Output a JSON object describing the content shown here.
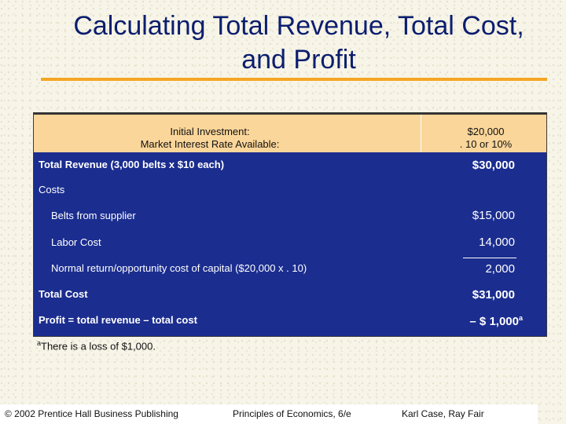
{
  "slide": {
    "title_line1": "Calculating Total Revenue, Total Cost,",
    "title_line2": "and Profit"
  },
  "table": {
    "header": {
      "label_line1": "Initial Investment:",
      "label_line2": "Market Interest Rate Available:",
      "value_line1": "$20,000",
      "value_line2": ". 10 or 10%"
    },
    "total_revenue": {
      "label": "Total Revenue (3,000 belts x $10 each)",
      "value": "$30,000"
    },
    "costs_heading": "Costs",
    "cost_items": [
      {
        "label": "Belts from supplier",
        "value": "$15,000"
      },
      {
        "label": "Labor Cost",
        "value": "14,000"
      },
      {
        "label": "Normal return/opportunity cost of capital ($20,000 x . 10)",
        "value": "2,000"
      }
    ],
    "total_cost": {
      "label": "Total Cost",
      "value": "$31,000"
    },
    "profit": {
      "label": "Profit = total revenue – total cost",
      "value": "– $  1,000",
      "value_sup": "a"
    }
  },
  "footnote": {
    "marker": "a",
    "text": "There is a loss of $1,000."
  },
  "footer": {
    "copyright": "© 2002 Prentice Hall Business Publishing",
    "book": "Principles of Economics, 6/e",
    "authors": "Karl Case, Ray Fair"
  },
  "colors": {
    "title": "#0b1e6e",
    "accent_rule": "#f5a623",
    "table_body": "#1b2d8f",
    "table_header": "#fbd69a"
  }
}
